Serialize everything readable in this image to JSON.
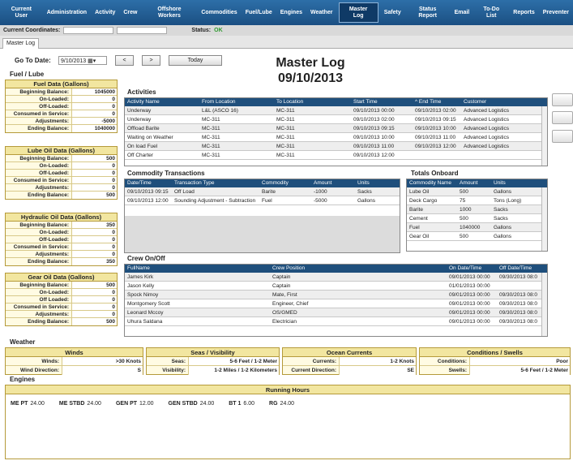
{
  "nav": [
    "Current User",
    "Administration",
    "Activity",
    "Crew",
    "Offshore Workers",
    "Commodities",
    "Fuel/Lube",
    "Engines",
    "Weather",
    "Master Log",
    "Safety",
    "Status Report",
    "Email",
    "To-Do List",
    "Reports",
    "Preventer"
  ],
  "coord": {
    "label": "Current Coordinates:",
    "status_label": "Status:",
    "status_value": "OK"
  },
  "tab": "Master Log",
  "goto": {
    "label": "Go To Date:",
    "date": "9/10/2013",
    "prev": "<",
    "next": ">",
    "today": "Today"
  },
  "title": {
    "line1": "Master Log",
    "line2": "09/10/2013"
  },
  "fuel_lube_heading": "Fuel / Lube",
  "fuel": {
    "title": "Fuel Data (Gallons)",
    "rows": [
      [
        "Beginning Balance:",
        "1045000"
      ],
      [
        "On-Loaded:",
        "0"
      ],
      [
        "Off-Loaded:",
        "0"
      ],
      [
        "Consumed in Service:",
        "0"
      ],
      [
        "Adjustments:",
        "-5000"
      ],
      [
        "Ending Balance:",
        "1040000"
      ]
    ]
  },
  "lube": {
    "title": "Lube Oil Data (Gallons)",
    "rows": [
      [
        "Beginning Balance:",
        "500"
      ],
      [
        "On-Loaded:",
        "0"
      ],
      [
        "Off-Loaded:",
        "0"
      ],
      [
        "Consumed in Service:",
        "0"
      ],
      [
        "Adjustments:",
        "0"
      ],
      [
        "Ending Balance:",
        "500"
      ]
    ]
  },
  "hydraulic": {
    "title": "Hydraulic Oil Data (Gallons)",
    "rows": [
      [
        "Beginning Balance:",
        "350"
      ],
      [
        "On-Loaded:",
        "0"
      ],
      [
        "Off-Loaded:",
        "0"
      ],
      [
        "Consumed in Service:",
        "0"
      ],
      [
        "Adjustments:",
        "0"
      ],
      [
        "Ending Balance:",
        "350"
      ]
    ]
  },
  "gear": {
    "title": "Gear Oil Data (Gallons)",
    "rows": [
      [
        "Beginning Balance:",
        "500"
      ],
      [
        "On-Loaded:",
        "0"
      ],
      [
        "Off Loaded:",
        "0"
      ],
      [
        "Consumed in Service:",
        "0"
      ],
      [
        "Adjustments:",
        "0"
      ],
      [
        "Ending Balance:",
        "500"
      ]
    ]
  },
  "activities": {
    "heading": "Activities",
    "columns": [
      "Activity Name",
      "From Location",
      "To Location",
      "Start Time",
      "^ End Time",
      "Customer"
    ],
    "rows": [
      [
        "Underway",
        "L&L (ASCO 16)",
        "MC-311",
        "09/10/2013  00:00",
        "09/10/2013  02:00",
        "Advanced Logistics"
      ],
      [
        "Underway",
        "MC-311",
        "MC-311",
        "09/10/2013  02:00",
        "09/10/2013  09:15",
        "Advanced Logistics"
      ],
      [
        "Offload Barite",
        "MC-311",
        "MC-311",
        "09/10/2013  09:15",
        "09/10/2013  10:00",
        "Advanced Logistics"
      ],
      [
        "Waiting on Weather",
        "MC-311",
        "MC-311",
        "09/10/2013  10:00",
        "09/10/2013  11:00",
        "Advanced Logistics"
      ],
      [
        "On load Fuel",
        "MC-311",
        "MC-311",
        "09/10/2013  11:00",
        "09/10/2013  12:00",
        "Advanced Logistics"
      ],
      [
        "Off Charter",
        "MC-311",
        "MC-311",
        "09/10/2013  12:00",
        "",
        ""
      ]
    ]
  },
  "commodity": {
    "heading": "Commodity Transactions",
    "columns": [
      "Date/Time",
      "Transaction Type",
      "Commodity",
      "Amount",
      "Units"
    ],
    "rows": [
      [
        "09/10/2013  09:15",
        "Off Load",
        "Barite",
        "-1000",
        "Sacks"
      ],
      [
        "09/10/2013  12:00",
        "Sounding Adjustment - Subtraction",
        "Fuel",
        "-5000",
        "Gallons"
      ]
    ]
  },
  "totals": {
    "heading": "Totals Onboard",
    "columns": [
      "Commodity Name",
      "Amount",
      "Units"
    ],
    "rows": [
      [
        "Lube Oil",
        "500",
        "Gallons"
      ],
      [
        "Deck Cargo",
        "75",
        "Tons (Long)"
      ],
      [
        "Barite",
        "1000",
        "Sacks"
      ],
      [
        "Cement",
        "500",
        "Sacks"
      ],
      [
        "Fuel",
        "1040000",
        "Gallons"
      ],
      [
        "Gear Oil",
        "500",
        "Gallons"
      ]
    ]
  },
  "crew": {
    "heading": "Crew On/Off",
    "columns": [
      "FullName",
      "Crew Position",
      "On Date/Time",
      "Off Date/Time"
    ],
    "rows": [
      [
        "James Kirk",
        "Captain",
        "09/01/2013  00:00",
        "09/30/2013  08:0"
      ],
      [
        "Jason Kelly",
        "Captain",
        "01/01/2013  00:00",
        ""
      ],
      [
        "Spock Nimoy",
        "Mate, First",
        "09/01/2013  00:00",
        "09/30/2013  08:0"
      ],
      [
        "Montgomery Scott",
        "Engineer, Chief",
        "09/01/2013  00:00",
        "09/30/2013  08:0"
      ],
      [
        "Leonard Mccoy",
        "OS/GMED",
        "09/01/2013  00:00",
        "09/30/2013  08:0"
      ],
      [
        "Uhura Saldana",
        "Electrician",
        "09/01/2013  00:00",
        "09/30/2013  08:0"
      ]
    ]
  },
  "weather": {
    "heading": "Weather",
    "winds": {
      "title": "Winds",
      "rows": [
        [
          "Winds:",
          ">30 Knots"
        ],
        [
          "Wind Direction:",
          "S"
        ]
      ]
    },
    "seas": {
      "title": "Seas / Visibility",
      "rows": [
        [
          "Seas:",
          "5-6 Feet / 1-2 Meter"
        ],
        [
          "Visibility:",
          "1-2 Miles / 1-2 Kilometers"
        ]
      ]
    },
    "ocean": {
      "title": "Ocean Currents",
      "rows": [
        [
          "Currents:",
          "1-2 Knots"
        ],
        [
          "Current Direction:",
          "SE"
        ]
      ]
    },
    "cond": {
      "title": "Conditions / Swells",
      "rows": [
        [
          "Conditions:",
          "Poor"
        ],
        [
          "Swells:",
          "5-6 Feet / 1-2 Meter"
        ]
      ]
    }
  },
  "engines": {
    "heading": "Engines",
    "title": "Running Hours",
    "items": [
      [
        "ME PT",
        "24.00"
      ],
      [
        "ME STBD",
        "24.00"
      ],
      [
        "GEN PT",
        "12.00"
      ],
      [
        "GEN STBD",
        "24.00"
      ],
      [
        "BT 1",
        "6.00"
      ],
      [
        "RG",
        "24.00"
      ]
    ]
  }
}
